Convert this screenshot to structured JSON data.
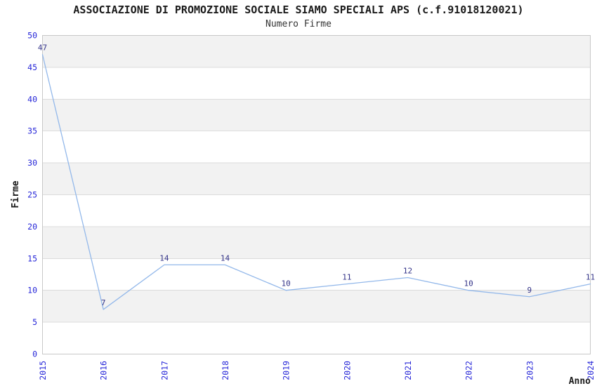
{
  "chart_data": {
    "type": "line",
    "title": "ASSOCIAZIONE DI PROMOZIONE SOCIALE SIAMO SPECIALI APS (c.f.91018120021)",
    "subtitle": "Numero Firme",
    "xlabel": "Anno",
    "ylabel": "Firme",
    "categories": [
      "2015",
      "2016",
      "2017",
      "2018",
      "2019",
      "2020",
      "2021",
      "2022",
      "2023",
      "2024"
    ],
    "values": [
      47,
      7,
      14,
      14,
      10,
      11,
      12,
      10,
      9,
      11
    ],
    "ylim": [
      0,
      50
    ],
    "y_ticks": [
      0,
      5,
      10,
      15,
      20,
      25,
      30,
      35,
      40,
      45,
      50
    ],
    "grid": "horizontal gridlines with alternating shaded bands every 5 units",
    "legend_position": "none",
    "colors": {
      "line": "#93b8ea",
      "tick_label": "#2626d8",
      "data_label": "#333388",
      "band_fill": "#f2f2f2",
      "grid_line": "#dcdcdc",
      "plot_border": "#c8c8c8",
      "text": "#1a1a1a"
    }
  }
}
